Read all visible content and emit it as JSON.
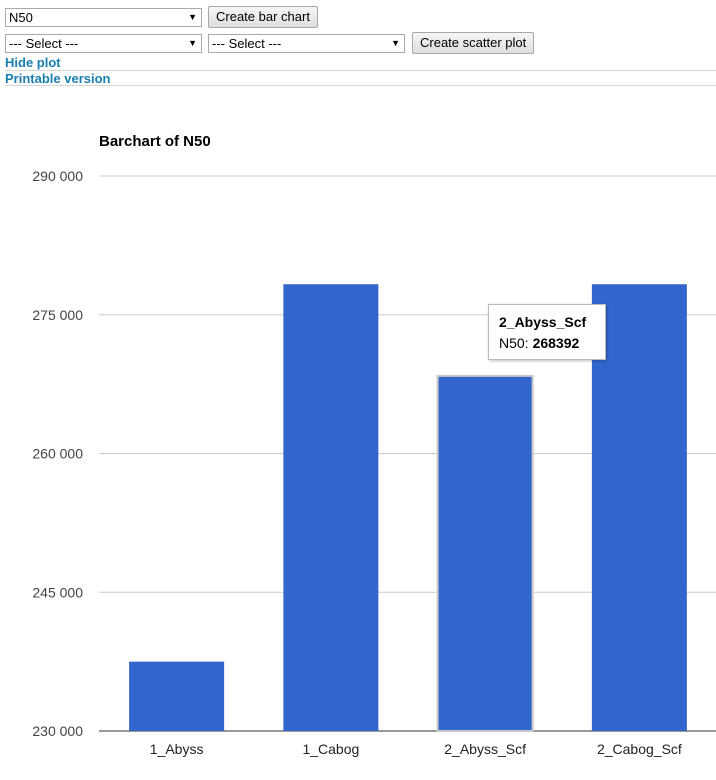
{
  "controls": {
    "metric_select": "N50",
    "create_bar_label": "Create bar chart",
    "scatter_x_select": "--- Select ---",
    "scatter_y_select": "--- Select ---",
    "create_scatter_label": "Create scatter plot",
    "hide_plot_link": "Hide plot",
    "printable_link": "Printable version"
  },
  "tooltip": {
    "title": "2_Abyss_Scf",
    "metric": "N50:",
    "value": "268392"
  },
  "colors": {
    "bar": "#3366cc",
    "link": "#1a7fb0"
  },
  "chart_data": {
    "type": "bar",
    "title": "Barchart of N50",
    "categories": [
      "1_Abyss",
      "1_Cabog",
      "2_Abyss_Scf",
      "2_Cabog_Scf"
    ],
    "values": [
      237500,
      278300,
      268392,
      278300
    ],
    "ylim": [
      230000,
      290000
    ],
    "yticks": [
      230000,
      245000,
      260000,
      275000,
      290000
    ],
    "ytick_labels": [
      "230 000",
      "245 000",
      "260 000",
      "275 000",
      "290 000"
    ],
    "grid": true,
    "highlighted_index": 2
  }
}
